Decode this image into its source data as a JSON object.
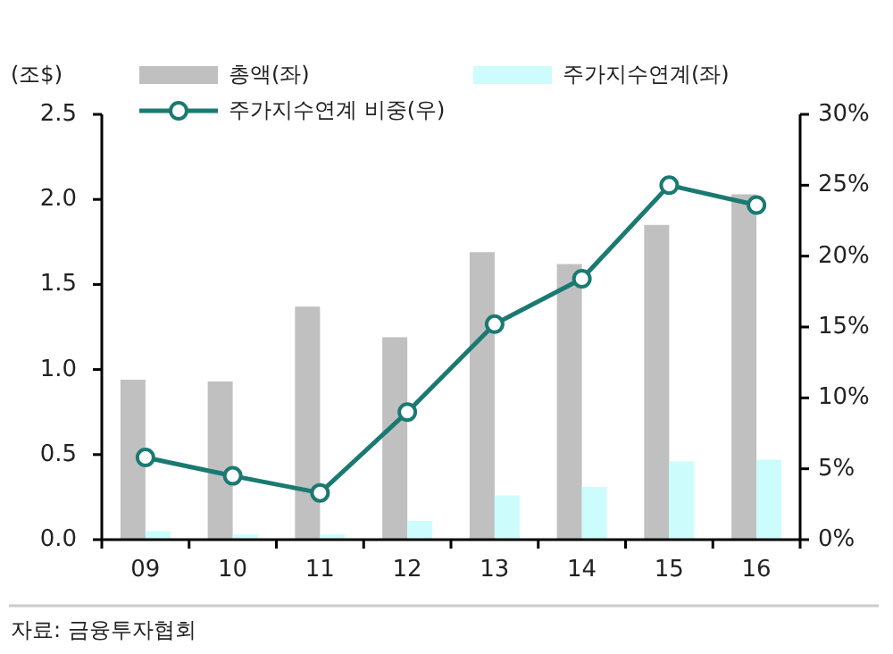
{
  "chart_data": {
    "type": "bar",
    "ylabel": "(조$)",
    "categories": [
      "09",
      "10",
      "11",
      "12",
      "13",
      "14",
      "15",
      "16"
    ],
    "series": [
      {
        "name": "총액(좌)",
        "axis": "y",
        "color": "#c0c0c0",
        "values": [
          0.94,
          0.93,
          1.37,
          1.19,
          1.69,
          1.62,
          1.85,
          2.03
        ]
      },
      {
        "name": "주가지수연계(좌)",
        "axis": "y",
        "color": "#ccfcfc",
        "values": [
          0.05,
          0.03,
          0.03,
          0.11,
          0.26,
          0.31,
          0.46,
          0.47
        ]
      },
      {
        "name": "주가지수연계 비중(우)",
        "type": "line",
        "axis": "y2",
        "color": "#1a7a72",
        "marker": "circle",
        "line_style": "solid",
        "values": [
          5.8,
          4.5,
          3.3,
          9.0,
          15.2,
          18.4,
          25.0,
          23.6
        ]
      }
    ],
    "ylim": [
      0,
      2.5
    ],
    "yticks": [
      {
        "value": 0,
        "label": "0.0"
      },
      {
        "value": 0.5,
        "label": "0.5"
      },
      {
        "value": 1,
        "label": "1.0"
      },
      {
        "value": 1.5,
        "label": "1.5"
      },
      {
        "value": 2,
        "label": "2.0"
      },
      {
        "value": 2.5,
        "label": "2.5"
      }
    ],
    "y2lim": [
      0,
      30
    ],
    "y2ticks": [
      {
        "value": 0,
        "label": "0%"
      },
      {
        "value": 5,
        "label": "5%"
      },
      {
        "value": 10,
        "label": "10%"
      },
      {
        "value": 15,
        "label": "15%"
      },
      {
        "value": 20,
        "label": "20%"
      },
      {
        "value": 25,
        "label": "25%"
      },
      {
        "value": 30,
        "label": "30%"
      }
    ],
    "legend": "top",
    "annotations": [
      "자료: 금융투자협회"
    ]
  }
}
